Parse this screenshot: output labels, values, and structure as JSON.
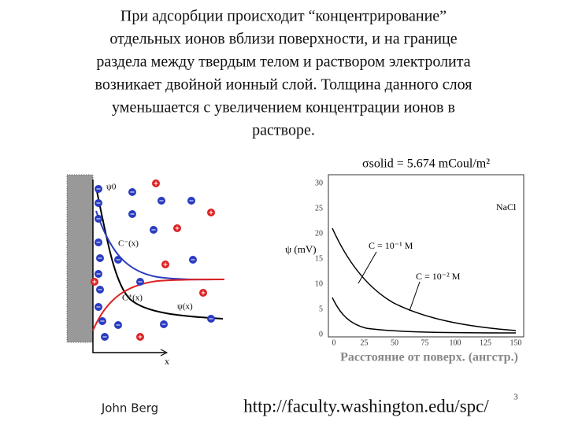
{
  "text": {
    "lines": [
      "При адсорбции происходит “концентрирование”",
      "отдельных ионов вблизи поверхности, и на границе",
      "раздела между твердым телом и раствором электролита",
      "возникает двойной ионный слой. Толщина данного слоя",
      "уменьшается с увеличением концентрации ионов в",
      "растворе."
    ]
  },
  "figure_left": {
    "psi0": "ψ0",
    "c_plus": "C⁺(x)",
    "c_minus": "C⁻(x)",
    "psi_x": "ψ(x)",
    "x_axis": "x"
  },
  "figure_right": {
    "sigma_label": "σsolid = 5.674 mCoul/m²",
    "y_label": "ψ (mV)",
    "salt": "NaCl",
    "curve_1": "C = 10⁻¹ M",
    "curve_2": "C = 10⁻² M",
    "xticks": [
      0,
      25,
      50,
      75,
      100,
      125,
      150
    ],
    "yticks": [
      0,
      5,
      10,
      15,
      20,
      25,
      30
    ],
    "x_label": "Расстояние от поверх. (ангстр.)"
  },
  "footer": {
    "author": "John Berg",
    "url": "http://faculty.washington.edu/spc/",
    "page": "3"
  }
}
